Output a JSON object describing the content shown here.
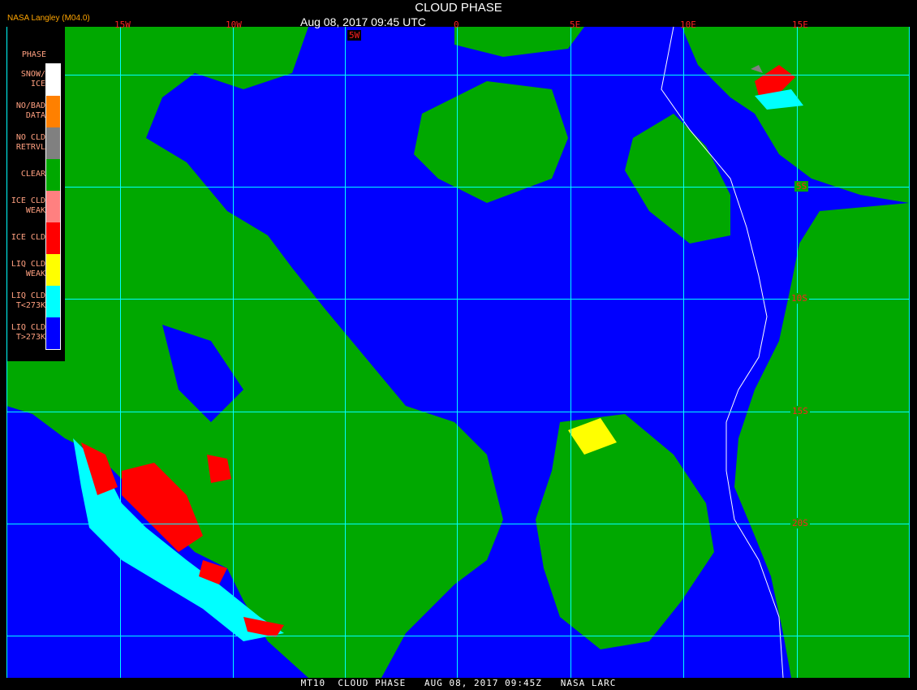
{
  "header": {
    "title": "CLOUD PHASE",
    "subtitle": "Aug 08, 2017 09:45 UTC",
    "brand": "NASA Langley (M04.0)"
  },
  "longitude_labels": [
    "15W",
    "10W",
    "5W",
    "0",
    "5E",
    "10E",
    "15E"
  ],
  "latitude_labels": [
    "5S",
    "10S",
    "15S",
    "20S"
  ],
  "legend": {
    "title": "PHASE",
    "items": [
      {
        "label": "SNOW/\nICE",
        "color": "#ffffff"
      },
      {
        "label": "NO/BAD\nDATA",
        "color": "#ff8000"
      },
      {
        "label": "NO CLD\nRETRVL",
        "color": "#808080"
      },
      {
        "label": "CLEAR",
        "color": "#00a800"
      },
      {
        "label": "ICE CLD\nWEAK",
        "color": "#ff8080"
      },
      {
        "label": "ICE CLD",
        "color": "#ff0000"
      },
      {
        "label": "LIQ CLD\nWEAK",
        "color": "#ffff00"
      },
      {
        "label": "LIQ CLD\nT<273K",
        "color": "#00ffff"
      },
      {
        "label": "LIQ CLD\nT>273K",
        "color": "#0000ff"
      }
    ]
  },
  "footer": "MT10  CLOUD PHASE   AUG 08, 2017 09:45Z   NASA LARC",
  "colors": {
    "grid": "#00ffff",
    "coast": "#ffffff",
    "label": "#ff2020"
  }
}
